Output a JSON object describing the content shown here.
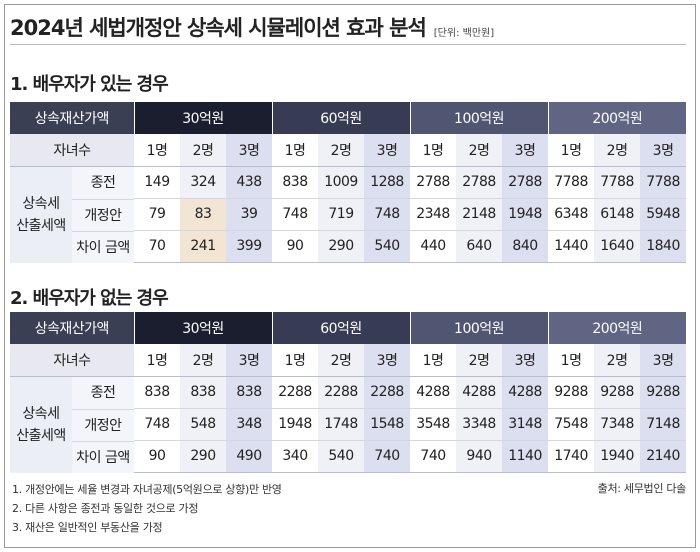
{
  "title": "2024년 세법개정안 상속세 시뮬레이션 효과 분석",
  "unit": "[단위: 백만원]",
  "header": {
    "asset_label": "상속재산가액",
    "children_label": "자녀수",
    "assets": [
      "30억원",
      "60억원",
      "100억원",
      "200억원"
    ],
    "children": [
      "1명",
      "2명",
      "3명"
    ]
  },
  "row_group_label_line1": "상속세",
  "row_group_label_line2": "산출세액",
  "row_labels": [
    "종전",
    "개정안",
    "차이 금액"
  ],
  "sections": [
    {
      "heading": "1. 배우자가 있는 경우",
      "rows": [
        [
          "149",
          "324",
          "438",
          "838",
          "1009",
          "1288",
          "2788",
          "2788",
          "2788",
          "7788",
          "7788",
          "7788"
        ],
        [
          "79",
          "83",
          "39",
          "748",
          "719",
          "748",
          "2348",
          "2148",
          "1948",
          "6348",
          "6148",
          "5948"
        ],
        [
          "70",
          "241",
          "399",
          "90",
          "290",
          "540",
          "440",
          "640",
          "840",
          "1440",
          "1640",
          "1840"
        ]
      ]
    },
    {
      "heading": "2. 배우자가 없는 경우",
      "rows": [
        [
          "838",
          "838",
          "838",
          "2288",
          "2288",
          "2288",
          "4288",
          "4288",
          "4288",
          "9288",
          "9288",
          "9288"
        ],
        [
          "748",
          "548",
          "348",
          "1948",
          "1748",
          "1548",
          "3548",
          "3348",
          "3148",
          "7548",
          "7348",
          "7148"
        ],
        [
          "90",
          "290",
          "490",
          "340",
          "540",
          "740",
          "740",
          "940",
          "1140",
          "1740",
          "1940",
          "2140"
        ]
      ]
    }
  ],
  "notes": [
    "1. 개정안에는 세율 변경과 자녀공제(5억원으로 상향)만 반영",
    "2. 다른 사항은 종전과 동일한 것으로 가정",
    "3. 재산은 일반적인 부동산을 가정"
  ],
  "source": "출처: 세무법인 다솔",
  "colors": {
    "header_30": "#1b1e2e",
    "header_60": "#373c54",
    "header_100": "#505672",
    "header_200": "#5f6583",
    "highlight": "#f3e5d3"
  }
}
